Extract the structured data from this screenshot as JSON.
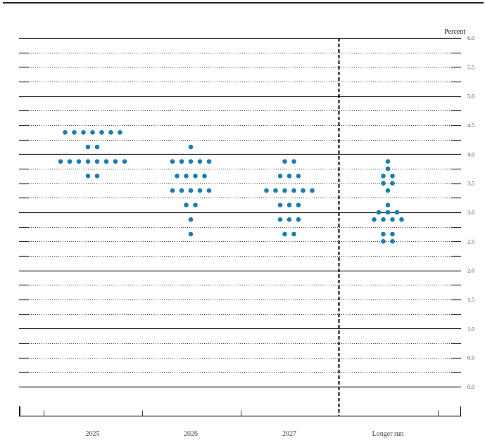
{
  "chart_data": {
    "type": "scatter",
    "subtype": "dot-plot",
    "title": "",
    "ylabel": "Percent",
    "xlabel": "",
    "ylim": [
      0,
      6
    ],
    "yticks": [
      "0.0",
      "0.5",
      "1.0",
      "1.5",
      "2.0",
      "2.5",
      "3.0",
      "3.5",
      "4.0",
      "4.5",
      "5.0",
      "5.5",
      "6.0"
    ],
    "grid": {
      "major_step": 1.0,
      "major_style": "solid",
      "minor_step": 0.25,
      "minor_style": "dotted"
    },
    "categories": [
      "2025",
      "2026",
      "2027",
      "Longer run"
    ],
    "separator_before": "Longer run",
    "dot_color": "#1a7fae",
    "series": [
      {
        "name": "2025",
        "points": [
          {
            "value": 4.375,
            "count": 7
          },
          {
            "value": 4.125,
            "count": 2
          },
          {
            "value": 3.875,
            "count": 8
          },
          {
            "value": 3.625,
            "count": 2
          }
        ]
      },
      {
        "name": "2026",
        "points": [
          {
            "value": 4.125,
            "count": 1
          },
          {
            "value": 3.875,
            "count": 5
          },
          {
            "value": 3.625,
            "count": 4
          },
          {
            "value": 3.375,
            "count": 5
          },
          {
            "value": 3.125,
            "count": 2
          },
          {
            "value": 2.875,
            "count": 1
          },
          {
            "value": 2.625,
            "count": 1
          }
        ]
      },
      {
        "name": "2027",
        "points": [
          {
            "value": 3.875,
            "count": 2
          },
          {
            "value": 3.625,
            "count": 3
          },
          {
            "value": 3.375,
            "count": 6
          },
          {
            "value": 3.125,
            "count": 3
          },
          {
            "value": 2.875,
            "count": 3
          },
          {
            "value": 2.625,
            "count": 2
          }
        ]
      },
      {
        "name": "Longer run",
        "points": [
          {
            "value": 3.875,
            "count": 1
          },
          {
            "value": 3.75,
            "count": 1
          },
          {
            "value": 3.625,
            "count": 2
          },
          {
            "value": 3.5,
            "count": 2
          },
          {
            "value": 3.375,
            "count": 1
          },
          {
            "value": 3.125,
            "count": 1
          },
          {
            "value": 3.0,
            "count": 3
          },
          {
            "value": 2.875,
            "count": 4
          },
          {
            "value": 2.625,
            "count": 2
          },
          {
            "value": 2.5,
            "count": 2
          }
        ]
      }
    ]
  }
}
